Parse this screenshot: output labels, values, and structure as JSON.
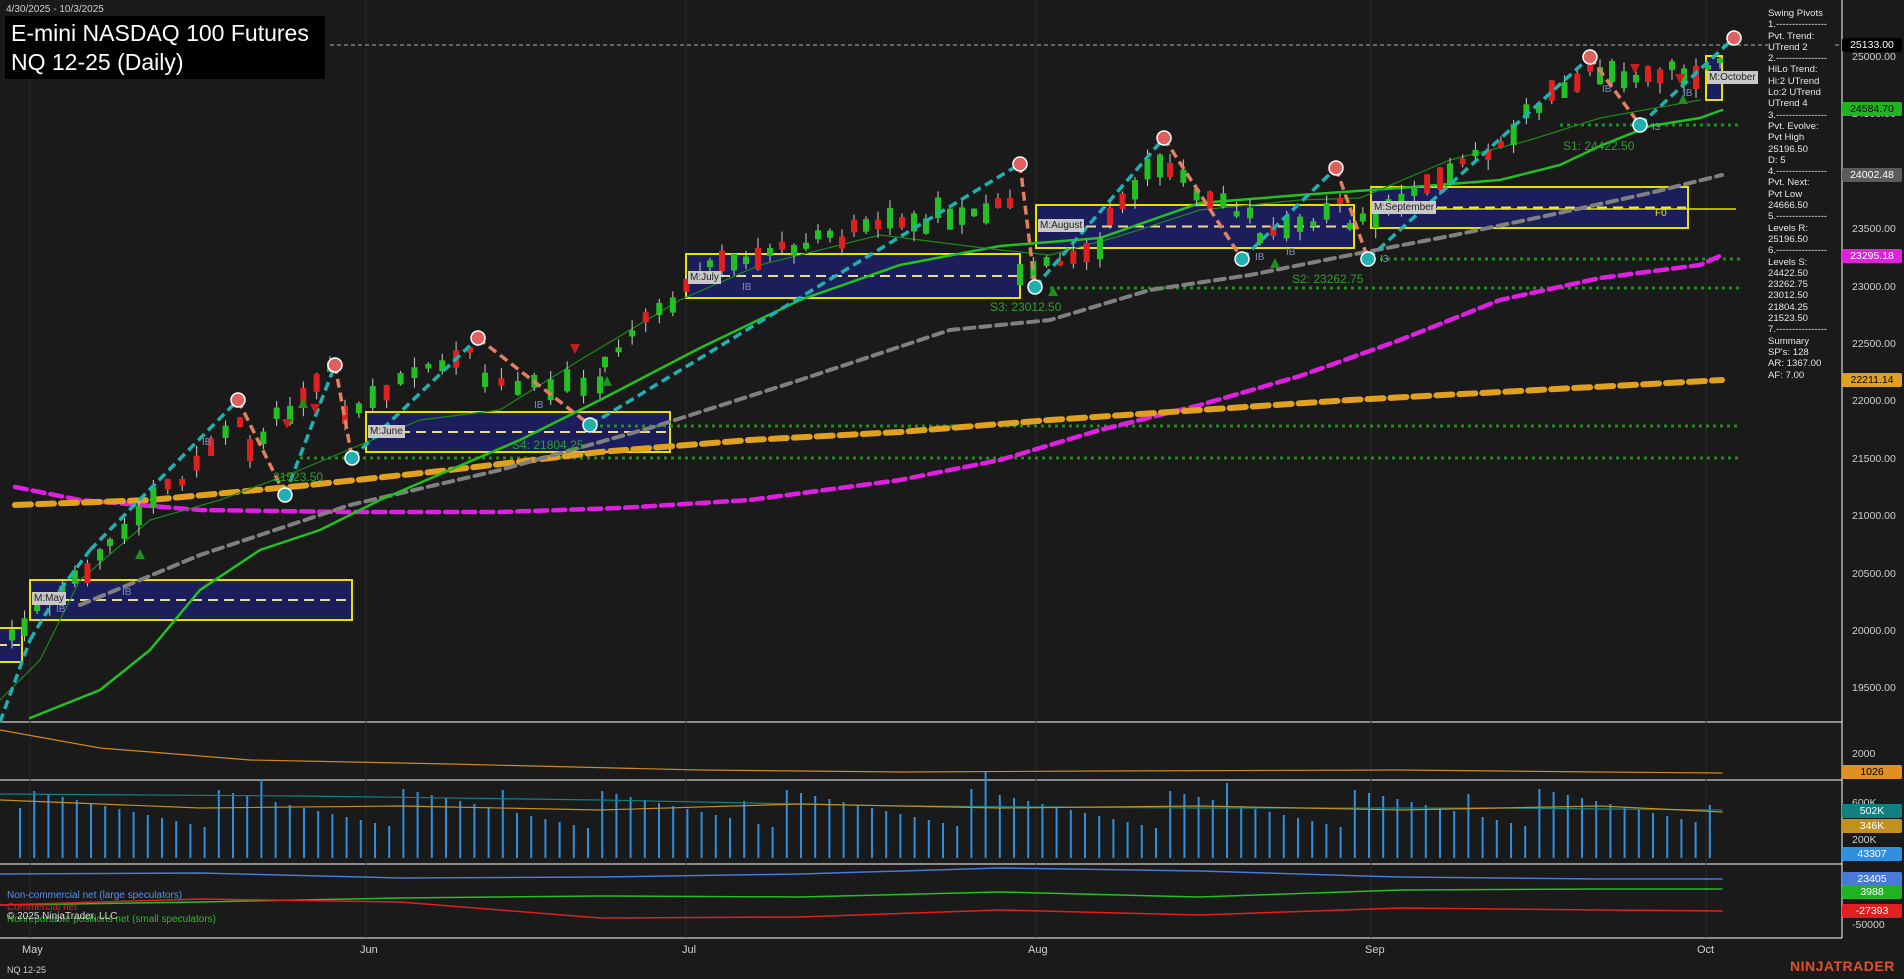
{
  "header": {
    "date_range": "4/30/2025 - 10/3/2025",
    "title": "E-mini NASDAQ 100 Futures",
    "subtitle": "NQ 12-25 (Daily)"
  },
  "swing_panel": {
    "lines": [
      "Swing Pivots",
      "1.----------------",
      "Pvt. Trend:",
      "UTrend 2",
      "2.----------------",
      "HiLo Trend:",
      "Hi:2 UTrend",
      "Lo:2 UTrend",
      "UTrend 4",
      "3.----------------",
      "Pvt. Evolve:",
      "Pvt High",
      "25196.50",
      "D: 5",
      "4.----------------",
      "Pvt. Next:",
      "Pvt Low",
      "24666.50",
      "5.----------------",
      "Levels R:",
      "25196.50",
      "6.----------------",
      "Levels S:",
      "24422.50",
      "23262.75",
      "23012.50",
      "21804.25",
      "21523.50",
      "7.----------------",
      "Summary",
      "SP's: 128",
      "AR: 1367.00",
      "AF: 7.00"
    ]
  },
  "price_axis": {
    "ticks": [
      "25000.00",
      "24500.00",
      "23500.00",
      "23000.00",
      "22500.00",
      "22000.00",
      "21500.00",
      "21000.00",
      "20500.00",
      "20000.00",
      "19500.00"
    ]
  },
  "price_tags": [
    {
      "text": "25133.00",
      "bg": "#000000",
      "fg": "#ffffff"
    },
    {
      "text": "24584.70",
      "bg": "#22b322",
      "fg": "#000000"
    },
    {
      "text": "24002.48",
      "bg": "#5c5c5c",
      "fg": "#ffffff"
    },
    {
      "text": "23295.18",
      "bg": "#e020e0",
      "fg": "#ffffff"
    },
    {
      "text": "22211.14",
      "bg": "#e0a020",
      "fg": "#000000"
    }
  ],
  "indicator1": {
    "tick": "2000",
    "tag": "1026",
    "tag_color": "#e09020"
  },
  "indicator2": {
    "ticks": [
      "600K",
      "200K"
    ],
    "tags": [
      {
        "text": "502K",
        "bg": "#108080"
      },
      {
        "text": "346K",
        "bg": "#c09020"
      },
      {
        "text": "43307",
        "bg": "#3090e0"
      }
    ]
  },
  "indicator3": {
    "tick": "-50000",
    "tags": [
      {
        "text": "23405",
        "bg": "#4a7ad8"
      },
      {
        "text": "3988",
        "bg": "#22b322"
      },
      {
        "text": "-27393",
        "bg": "#e02020"
      }
    ],
    "legend": [
      {
        "text": "Non-commercial net (large speculators)",
        "color": "#5b8ff0"
      },
      {
        "text": "Commercial net",
        "color": "#e02020"
      },
      {
        "text": "Nonreportable positions net (small speculators)",
        "color": "#22c022"
      }
    ]
  },
  "x_axis": {
    "labels": [
      "May",
      "Jun",
      "Jul",
      "Aug",
      "Sep",
      "Oct"
    ]
  },
  "month_boxes": [
    "M:May",
    "M:June",
    "M:July",
    "M:August",
    "M:September",
    "M:October"
  ],
  "zones": [
    {
      "text": "S1: 24422.50"
    },
    {
      "text": "S2: 23262.75"
    },
    {
      "text": "S3: 23012.50"
    },
    {
      "text": "S4: 21804.25"
    },
    {
      "text": "21523.50"
    },
    {
      "text": "F0"
    }
  ],
  "ib_label": "IB",
  "ib3_label": "I3",
  "footer": {
    "copyright": "© 2025 NinjaTrader, LLC",
    "symbol": "NQ 12-25",
    "brand": "NINJATRADER"
  },
  "colors": {
    "background": "#1a1a1a",
    "up_candle": "#22c022",
    "down_candle": "#e02020",
    "ema_fast": "#22c022",
    "ema_mid": "#808080",
    "ema_magenta": "#e020e0",
    "ema_orange": "#e0a020",
    "zigzag_up": "#20b0b0",
    "zigzag_down": "#e08060"
  },
  "icons": [
    "pivot-high-marker-icon",
    "pivot-low-marker-icon",
    "triangle-up-icon",
    "triangle-down-icon"
  ]
}
